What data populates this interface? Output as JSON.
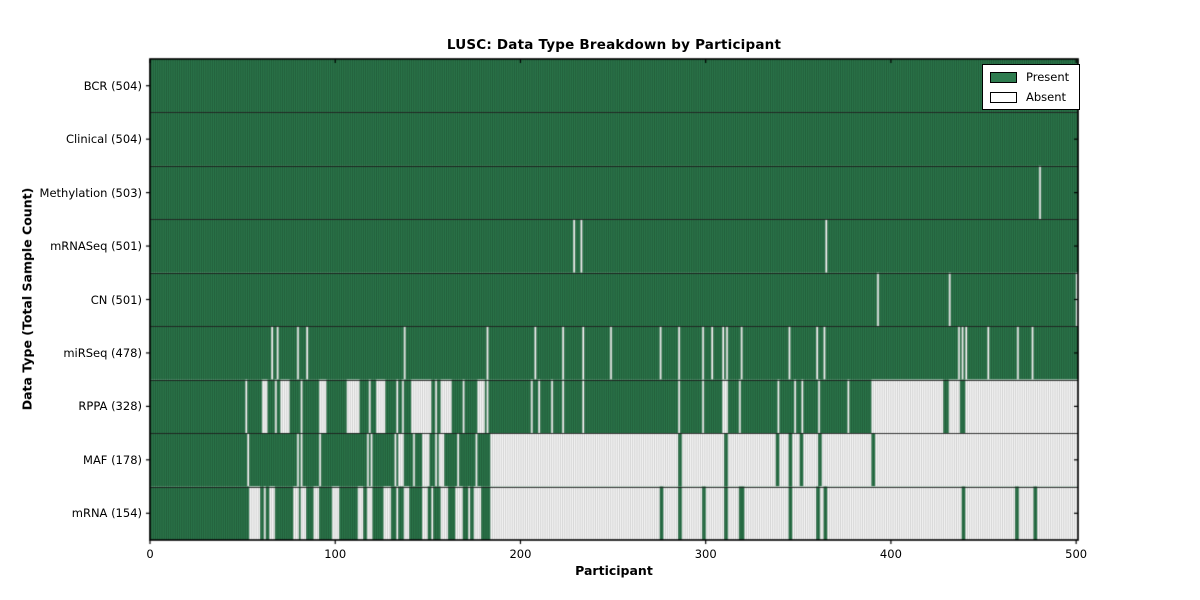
{
  "chart_data": {
    "type": "heatmap",
    "title": "LUSC: Data Type Breakdown by Participant",
    "xlabel": "Participant",
    "ylabel": "Data Type (Total Sample Count)",
    "x_ticks": [
      0,
      100,
      200,
      300,
      400,
      500
    ],
    "xlim": [
      0,
      501
    ],
    "n_participants": 504,
    "grid": false,
    "legend": {
      "position": "upper right",
      "items": [
        {
          "label": "Present",
          "color": "#2e7c4f"
        },
        {
          "label": "Absent",
          "color": "#ffffff"
        }
      ]
    },
    "colors": {
      "present": "#2e7c4f",
      "present_edge": "#1c4f30",
      "absent": "#ffffff",
      "absent_edge": "#c3c3c3",
      "row_divider": "#1a1a1a",
      "plot_border": "#000000",
      "tick": "#000000"
    },
    "rows": [
      {
        "label": "BCR (504)",
        "count": 504,
        "absent": []
      },
      {
        "label": "Clinical (504)",
        "count": 504,
        "absent": []
      },
      {
        "label": "Methylation (503)",
        "count": 503,
        "absent": [
          [
            483,
            483
          ]
        ]
      },
      {
        "label": "mRNASeq (501)",
        "count": 501,
        "absent": [
          [
            230,
            230
          ],
          [
            234,
            234
          ],
          [
            367,
            367
          ]
        ]
      },
      {
        "label": "CN (501)",
        "count": 501,
        "absent": [
          [
            395,
            395
          ],
          [
            434,
            434
          ],
          [
            503,
            503
          ]
        ]
      },
      {
        "label": "miRSeq (478)",
        "count": 478,
        "absent": [
          [
            66,
            66
          ],
          [
            69,
            69
          ],
          [
            80,
            80
          ],
          [
            85,
            85
          ],
          [
            138,
            138
          ],
          [
            183,
            183
          ],
          [
            209,
            209
          ],
          [
            224,
            224
          ],
          [
            235,
            235
          ],
          [
            250,
            250
          ],
          [
            277,
            277
          ],
          [
            287,
            287
          ],
          [
            300,
            300
          ],
          [
            305,
            305
          ],
          [
            311,
            311
          ],
          [
            313,
            313
          ],
          [
            321,
            321
          ],
          [
            347,
            347
          ],
          [
            362,
            362
          ],
          [
            366,
            366
          ],
          [
            439,
            439
          ],
          [
            441,
            441
          ],
          [
            443,
            443
          ],
          [
            455,
            455
          ],
          [
            471,
            471
          ],
          [
            479,
            479
          ]
        ]
      },
      {
        "label": "RPPA (328)",
        "count": 328,
        "absent": [
          [
            52,
            52
          ],
          [
            61,
            63
          ],
          [
            68,
            68
          ],
          [
            71,
            75
          ],
          [
            82,
            82
          ],
          [
            92,
            95
          ],
          [
            107,
            113
          ],
          [
            119,
            119
          ],
          [
            123,
            127
          ],
          [
            134,
            134
          ],
          [
            137,
            137
          ],
          [
            142,
            152
          ],
          [
            155,
            155
          ],
          [
            158,
            163
          ],
          [
            170,
            170
          ],
          [
            178,
            181
          ],
          [
            183,
            183
          ],
          [
            207,
            207
          ],
          [
            211,
            211
          ],
          [
            218,
            218
          ],
          [
            224,
            224
          ],
          [
            235,
            235
          ],
          [
            287,
            287
          ],
          [
            300,
            300
          ],
          [
            311,
            313
          ],
          [
            320,
            320
          ],
          [
            341,
            341
          ],
          [
            350,
            350
          ],
          [
            354,
            354
          ],
          [
            363,
            363
          ],
          [
            379,
            379
          ],
          [
            392,
            430
          ],
          [
            434,
            439
          ],
          [
            443,
            503
          ]
        ]
      },
      {
        "label": "MAF (178)",
        "count": 178,
        "absent": [
          [
            53,
            53
          ],
          [
            80,
            80
          ],
          [
            82,
            82
          ],
          [
            92,
            92
          ],
          [
            118,
            118
          ],
          [
            120,
            120
          ],
          [
            133,
            133
          ],
          [
            135,
            137
          ],
          [
            143,
            143
          ],
          [
            148,
            151
          ],
          [
            155,
            155
          ],
          [
            157,
            159
          ],
          [
            167,
            167
          ],
          [
            177,
            177
          ],
          [
            185,
            286
          ],
          [
            289,
            311
          ],
          [
            314,
            339
          ],
          [
            342,
            346
          ],
          [
            349,
            352
          ],
          [
            355,
            362
          ],
          [
            365,
            391
          ],
          [
            394,
            503
          ]
        ]
      },
      {
        "label": "mRNA (154)",
        "count": 154,
        "absent": [
          [
            54,
            59
          ],
          [
            62,
            62
          ],
          [
            65,
            67
          ],
          [
            78,
            80
          ],
          [
            82,
            84
          ],
          [
            89,
            91
          ],
          [
            99,
            102
          ],
          [
            113,
            115
          ],
          [
            118,
            120
          ],
          [
            127,
            130
          ],
          [
            134,
            134
          ],
          [
            138,
            140
          ],
          [
            148,
            150
          ],
          [
            153,
            153
          ],
          [
            158,
            161
          ],
          [
            166,
            169
          ],
          [
            173,
            173
          ],
          [
            176,
            179
          ],
          [
            185,
            276
          ],
          [
            279,
            286
          ],
          [
            289,
            299
          ],
          [
            302,
            311
          ],
          [
            314,
            319
          ],
          [
            323,
            346
          ],
          [
            349,
            361
          ],
          [
            364,
            365
          ],
          [
            368,
            440
          ],
          [
            443,
            469
          ],
          [
            472,
            479
          ],
          [
            482,
            503
          ]
        ]
      }
    ]
  }
}
